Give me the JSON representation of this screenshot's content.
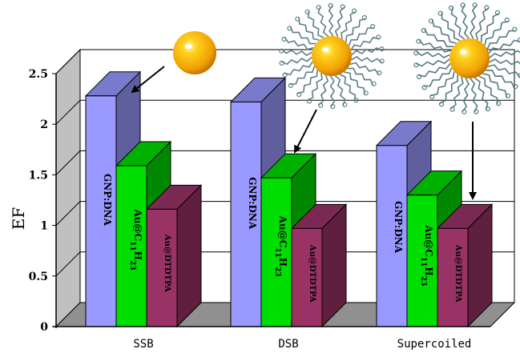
{
  "chart_data": {
    "type": "bar",
    "categories": [
      "SSB",
      "DSB",
      "Supercoiled"
    ],
    "ylabel": "EF",
    "xlabel": "",
    "ylim": [
      0,
      2.5
    ],
    "yticks": [
      "0",
      "0.5",
      "1",
      "1.5",
      "2",
      "2.5"
    ],
    "grid": true,
    "series": [
      {
        "name": "GNP:DNA",
        "values": [
          2.28,
          2.22,
          1.79
        ],
        "color": "#9999ff"
      },
      {
        "name": "Au@C11H23",
        "values": [
          1.59,
          1.47,
          1.3
        ],
        "color": "#00dd00"
      },
      {
        "name": "Au@DTDTPA",
        "values": [
          1.16,
          0.97,
          0.97
        ],
        "color": "#993366"
      }
    ],
    "annotations": [
      {
        "name": "bare gold nanoparticle",
        "points_to": "SSB / GNP:DNA"
      },
      {
        "name": "gold nanoparticle with C11H23 chains",
        "points_to": "DSB / Au@C11H23"
      },
      {
        "name": "gold nanoparticle with DTDTPA ligands",
        "points_to": "Supercoiled / Au@DTDTPA"
      }
    ]
  }
}
